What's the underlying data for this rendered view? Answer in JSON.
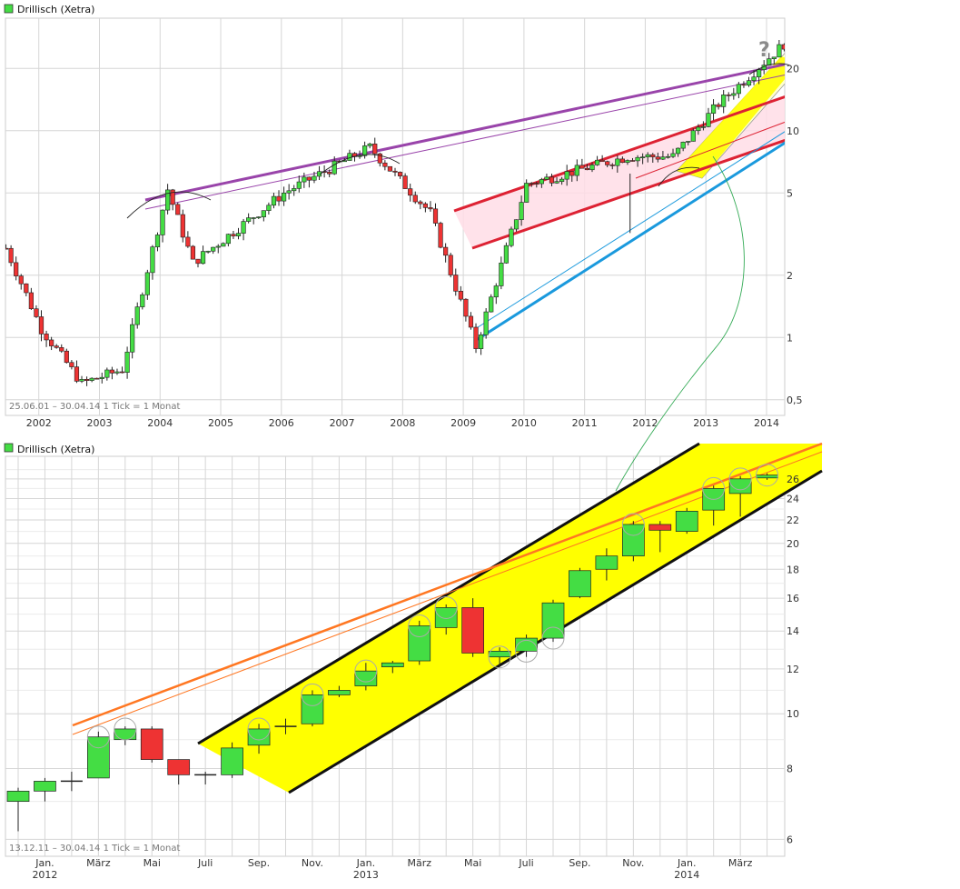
{
  "colors": {
    "up": "#44dd44",
    "down": "#ee3333",
    "wick": "#222222",
    "grid": "#d6d6d6",
    "purple": "#9944aa",
    "red_channel": "#dd2233",
    "red_fill": "#ffdde6",
    "blue": "#1a99dd",
    "yellow_fill": "#ffff00",
    "pale_yellow": "#ffffcc",
    "orange": "#ff7722",
    "green_arc": "#33aa55",
    "marker": "#aaaaaa",
    "legend_swatch": "#44dd44"
  },
  "top_chart": {
    "title": "Drillisch (Xetra)",
    "info": "25.06.01 – 30.04.14   1 Tick = 1 Monat",
    "question_mark": "?",
    "y_ticks": [
      {
        "value": 0.5,
        "label": "0,5"
      },
      {
        "value": 1,
        "label": "1"
      },
      {
        "value": 2,
        "label": "2"
      },
      {
        "value": 5,
        "label": "5"
      },
      {
        "value": 10,
        "label": "10"
      },
      {
        "value": 20,
        "label": "20"
      }
    ],
    "x_ticks": [
      "2002",
      "2003",
      "2004",
      "2005",
      "2006",
      "2007",
      "2008",
      "2009",
      "2010",
      "2011",
      "2012",
      "2013",
      "2014"
    ]
  },
  "bottom_chart": {
    "title": "Drillisch (Xetra)",
    "info": "13.12.11 – 30.04.14   1 Tick = 1 Monat",
    "y_ticks": [
      {
        "value": 6,
        "label": "6"
      },
      {
        "value": 8,
        "label": "8"
      },
      {
        "value": 10,
        "label": "10"
      },
      {
        "value": 12,
        "label": "12"
      },
      {
        "value": 14,
        "label": "14"
      },
      {
        "value": 16,
        "label": "16"
      },
      {
        "value": 18,
        "label": "18"
      },
      {
        "value": 20,
        "label": "20"
      },
      {
        "value": 22,
        "label": "22"
      },
      {
        "value": 24,
        "label": "24"
      },
      {
        "value": 26,
        "label": "26"
      }
    ],
    "x_ticks": [
      "Jan.",
      "März",
      "Mai",
      "Juli",
      "Sep.",
      "Nov.",
      "Jan.",
      "März",
      "Mai",
      "Juli",
      "Sep.",
      "Nov.",
      "Jan.",
      "März"
    ],
    "year_labels": [
      "2012",
      "2013",
      "2014"
    ]
  },
  "chart_data": [
    {
      "type": "candlestick",
      "title": "Drillisch (Xetra)",
      "period": "25.06.01 – 30.04.14",
      "interval": "1 Tick = 1 Monat",
      "y_scale": "log",
      "ylim": [
        0.42,
        35
      ],
      "x_range": [
        2001.45,
        2014.3
      ],
      "key_levels": [
        {
          "date": "2001-06",
          "price": 2.7
        },
        {
          "date": "2002-01",
          "price": 1.1
        },
        {
          "date": "2002-09",
          "price": 0.6
        },
        {
          "date": "2003-05",
          "price": 0.7
        },
        {
          "date": "2004-02",
          "price": 5.2
        },
        {
          "date": "2004-07",
          "price": 2.3
        },
        {
          "date": "2006-01",
          "price": 5.0
        },
        {
          "date": "2007-06",
          "price": 8.3
        },
        {
          "date": "2008-06",
          "price": 4.0
        },
        {
          "date": "2009-03",
          "price": 0.9
        },
        {
          "date": "2010-01",
          "price": 5.5
        },
        {
          "date": "2011-09",
          "price": 7.5
        },
        {
          "date": "2012-06",
          "price": 7.5
        },
        {
          "date": "2013-03",
          "price": 13.5
        },
        {
          "date": "2014-04",
          "price": 26.3
        }
      ]
    },
    {
      "type": "candlestick",
      "title": "Drillisch (Xetra)",
      "period": "13.12.11 – 30.04.14",
      "interval": "1 Tick = 1 Monat",
      "y_scale": "log",
      "ylim": [
        5.6,
        28.5
      ],
      "candles": [
        {
          "month": "2011-12",
          "open": 7.0,
          "close": 7.3,
          "high": 7.4,
          "low": 6.2
        },
        {
          "month": "2012-01",
          "open": 7.3,
          "close": 7.6,
          "high": 7.7,
          "low": 7.0
        },
        {
          "month": "2012-02",
          "open": 7.6,
          "close": 7.6,
          "high": 7.9,
          "low": 7.3
        },
        {
          "month": "2012-03",
          "open": 7.7,
          "close": 9.1,
          "high": 9.3,
          "low": 7.7
        },
        {
          "month": "2012-04",
          "open": 9.0,
          "close": 9.4,
          "high": 9.5,
          "low": 8.8
        },
        {
          "month": "2012-05",
          "open": 9.4,
          "close": 8.3,
          "high": 9.5,
          "low": 8.2
        },
        {
          "month": "2012-06",
          "open": 8.3,
          "close": 7.8,
          "high": 8.3,
          "low": 7.5
        },
        {
          "month": "2012-07",
          "open": 7.8,
          "close": 7.8,
          "high": 7.9,
          "low": 7.5
        },
        {
          "month": "2012-08",
          "open": 7.8,
          "close": 8.7,
          "high": 8.9,
          "low": 7.7
        },
        {
          "month": "2012-09",
          "open": 8.8,
          "close": 9.4,
          "high": 9.6,
          "low": 8.5
        },
        {
          "month": "2012-10",
          "open": 9.5,
          "close": 9.5,
          "high": 9.8,
          "low": 9.2
        },
        {
          "month": "2012-11",
          "open": 9.6,
          "close": 10.8,
          "high": 11.0,
          "low": 9.5
        },
        {
          "month": "2012-12",
          "open": 10.8,
          "close": 11.0,
          "high": 11.2,
          "low": 10.7
        },
        {
          "month": "2013-01",
          "open": 11.2,
          "close": 11.9,
          "high": 12.3,
          "low": 11.0
        },
        {
          "month": "2013-02",
          "open": 12.1,
          "close": 12.3,
          "high": 12.4,
          "low": 11.8
        },
        {
          "month": "2013-03",
          "open": 12.4,
          "close": 14.3,
          "high": 14.6,
          "low": 12.2
        },
        {
          "month": "2013-04",
          "open": 14.2,
          "close": 15.4,
          "high": 15.6,
          "low": 13.8
        },
        {
          "month": "2013-05",
          "open": 15.4,
          "close": 12.8,
          "high": 16.0,
          "low": 12.6
        },
        {
          "month": "2013-06",
          "open": 12.6,
          "close": 12.9,
          "high": 13.1,
          "low": 12.1
        },
        {
          "month": "2013-07",
          "open": 12.9,
          "close": 13.6,
          "high": 13.8,
          "low": 12.6
        },
        {
          "month": "2013-08",
          "open": 13.6,
          "close": 15.7,
          "high": 15.9,
          "low": 13.4
        },
        {
          "month": "2013-09",
          "open": 16.1,
          "close": 17.9,
          "high": 18.1,
          "low": 16.0
        },
        {
          "month": "2013-10",
          "open": 18.0,
          "close": 19.0,
          "high": 19.6,
          "low": 17.2
        },
        {
          "month": "2013-11",
          "open": 19.0,
          "close": 21.6,
          "high": 21.9,
          "low": 18.6
        },
        {
          "month": "2013-12",
          "open": 21.6,
          "close": 21.1,
          "high": 21.9,
          "low": 19.3
        },
        {
          "month": "2014-01",
          "open": 21.0,
          "close": 22.8,
          "high": 23.1,
          "low": 20.8
        },
        {
          "month": "2014-02",
          "open": 22.9,
          "close": 25.0,
          "high": 25.3,
          "low": 21.5
        },
        {
          "month": "2014-03",
          "open": 24.5,
          "close": 26.0,
          "high": 26.3,
          "low": 22.3
        },
        {
          "month": "2014-04",
          "open": 26.1,
          "close": 26.4,
          "high": 26.6,
          "low": 25.9
        }
      ]
    }
  ]
}
